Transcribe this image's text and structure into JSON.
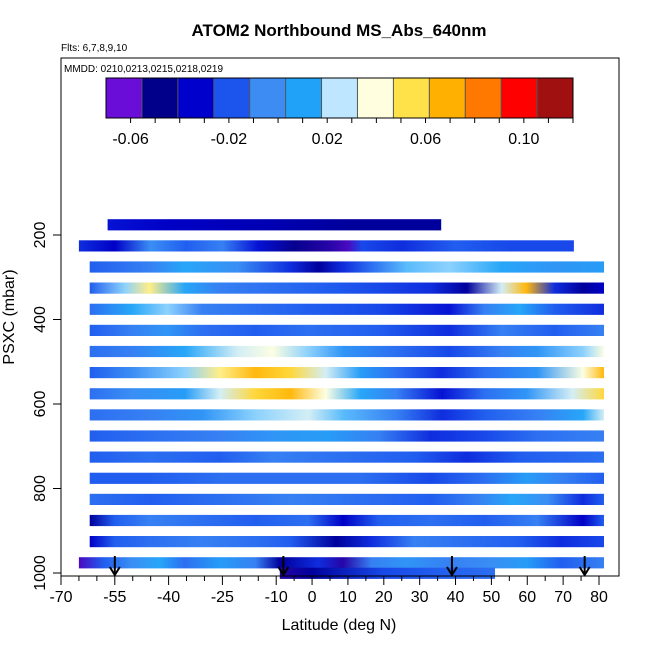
{
  "chart_data": {
    "type": "heatmap",
    "title": "ATOM2 Northbound MS_Abs_640nm",
    "flights_label": "Flts: 6,7,8,9,10",
    "dates_label": "MMDD: 0210,0213,0215,0218,0219",
    "xlabel": "Latitude (deg N)",
    "ylabel": "PSXC (mbar)",
    "x_ticks": [
      "-70",
      "-55",
      "-40",
      "-25",
      "-10",
      "0",
      "10",
      "20",
      "30",
      "40",
      "50",
      "60",
      "70",
      "80"
    ],
    "x_tick_values": [
      -70,
      -55,
      -40,
      -25,
      -10,
      0,
      10,
      20,
      30,
      40,
      50,
      60,
      70,
      80
    ],
    "x_minor_ticks": [
      -65,
      -60,
      -50,
      -45,
      -35,
      -30,
      -20,
      -15,
      -5,
      5,
      15,
      25,
      35,
      45,
      55,
      65,
      75
    ],
    "y_ticks": [
      "200",
      "400",
      "600",
      "800",
      "1000"
    ],
    "y_tick_values": [
      200,
      400,
      600,
      800,
      1000
    ],
    "xlim": [
      -70,
      84
    ],
    "ylim": [
      1000,
      100
    ],
    "colorbar": {
      "ticks": [
        "-0.06",
        "-0.02",
        "0.02",
        "0.06",
        "0.10"
      ],
      "tick_values": [
        -0.06,
        -0.02,
        0.02,
        0.06,
        0.1
      ],
      "range": [
        -0.07,
        0.12
      ],
      "step": 0.02,
      "colors": [
        "#6a0dd8",
        "#00008b",
        "#0000cd",
        "#1c55ee",
        "#3d8cf4",
        "#1fa2f8",
        "#bfe6ff",
        "#ffffe0",
        "#ffe14a",
        "#ffb000",
        "#ff7800",
        "#ff0000",
        "#a01010"
      ]
    },
    "arrow_latitudes": [
      -55,
      -8,
      39,
      76
    ],
    "pressure_levels": [
      175,
      225,
      275,
      325,
      375,
      425,
      475,
      525,
      575,
      625,
      675,
      725,
      775,
      825,
      875,
      925,
      975
    ],
    "bands": [
      {
        "p": 175,
        "lat_range": [
          -57,
          36
        ],
        "cells": [
          [
            -57,
            -0.035
          ],
          [
            -40,
            -0.04
          ],
          [
            -10,
            -0.045
          ],
          [
            10,
            -0.05
          ],
          [
            36,
            -0.05
          ]
        ]
      },
      {
        "p": 225,
        "lat_range": [
          -65,
          73
        ],
        "cells": [
          [
            -65,
            -0.03
          ],
          [
            -55,
            -0.04
          ],
          [
            -45,
            -0.005
          ],
          [
            -35,
            -0.02
          ],
          [
            -25,
            -0.01
          ],
          [
            -15,
            -0.035
          ],
          [
            -5,
            -0.055
          ],
          [
            5,
            -0.06
          ],
          [
            10,
            -0.065
          ],
          [
            14,
            -0.025
          ],
          [
            25,
            -0.03
          ],
          [
            40,
            -0.02
          ],
          [
            55,
            -0.025
          ],
          [
            73,
            -0.025
          ]
        ]
      },
      {
        "p": 275,
        "lat_range": [
          -62,
          84
        ],
        "cells": [
          [
            -62,
            -0.02
          ],
          [
            -45,
            -0.01
          ],
          [
            -35,
            0.01
          ],
          [
            -20,
            -0.005
          ],
          [
            -5,
            -0.03
          ],
          [
            3,
            -0.05
          ],
          [
            10,
            -0.03
          ],
          [
            18,
            -0.015
          ],
          [
            28,
            0.015
          ],
          [
            40,
            0.02
          ],
          [
            55,
            0.01
          ],
          [
            70,
            0.0
          ],
          [
            84,
            0.005
          ]
        ]
      },
      {
        "p": 325,
        "lat_range": [
          -62,
          84
        ],
        "cells": [
          [
            -62,
            -0.02
          ],
          [
            -52,
            0.02
          ],
          [
            -45,
            0.05
          ],
          [
            -35,
            0.01
          ],
          [
            -25,
            -0.01
          ],
          [
            -10,
            -0.015
          ],
          [
            5,
            -0.02
          ],
          [
            20,
            -0.025
          ],
          [
            35,
            -0.03
          ],
          [
            45,
            -0.05
          ],
          [
            55,
            0.03
          ],
          [
            62,
            0.07
          ],
          [
            70,
            -0.03
          ],
          [
            78,
            -0.05
          ],
          [
            84,
            -0.04
          ]
        ]
      },
      {
        "p": 375,
        "lat_range": [
          -62,
          84
        ],
        "cells": [
          [
            -62,
            -0.015
          ],
          [
            -50,
            0.01
          ],
          [
            -40,
            0.02
          ],
          [
            -30,
            -0.01
          ],
          [
            -15,
            -0.015
          ],
          [
            0,
            -0.02
          ],
          [
            20,
            -0.025
          ],
          [
            40,
            -0.035
          ],
          [
            50,
            -0.01
          ],
          [
            60,
            0.01
          ],
          [
            70,
            -0.02
          ],
          [
            84,
            -0.03
          ]
        ]
      },
      {
        "p": 425,
        "lat_range": [
          -62,
          84
        ],
        "cells": [
          [
            -62,
            -0.02
          ],
          [
            -50,
            -0.01
          ],
          [
            -40,
            0.0
          ],
          [
            -30,
            -0.015
          ],
          [
            -15,
            -0.02
          ],
          [
            0,
            -0.015
          ],
          [
            20,
            -0.02
          ],
          [
            40,
            -0.03
          ],
          [
            55,
            -0.01
          ],
          [
            70,
            -0.02
          ],
          [
            84,
            -0.01
          ]
        ]
      },
      {
        "p": 475,
        "lat_range": [
          -62,
          84
        ],
        "cells": [
          [
            -62,
            -0.015
          ],
          [
            -50,
            -0.01
          ],
          [
            -35,
            0.01
          ],
          [
            -20,
            0.03
          ],
          [
            -10,
            0.04
          ],
          [
            0,
            0.02
          ],
          [
            10,
            0.0
          ],
          [
            25,
            -0.015
          ],
          [
            40,
            -0.025
          ],
          [
            55,
            -0.01
          ],
          [
            65,
            0.0
          ],
          [
            78,
            0.02
          ],
          [
            84,
            0.04
          ]
        ]
      },
      {
        "p": 525,
        "lat_range": [
          -62,
          84
        ],
        "cells": [
          [
            -62,
            -0.02
          ],
          [
            -50,
            -0.005
          ],
          [
            -35,
            0.02
          ],
          [
            -25,
            0.05
          ],
          [
            -15,
            0.07
          ],
          [
            -5,
            0.06
          ],
          [
            5,
            0.03
          ],
          [
            15,
            0.005
          ],
          [
            25,
            -0.015
          ],
          [
            38,
            -0.03
          ],
          [
            50,
            -0.015
          ],
          [
            65,
            0.0
          ],
          [
            78,
            0.04
          ],
          [
            84,
            0.07
          ]
        ]
      },
      {
        "p": 575,
        "lat_range": [
          -62,
          84
        ],
        "cells": [
          [
            -62,
            -0.015
          ],
          [
            -50,
            -0.005
          ],
          [
            -35,
            0.005
          ],
          [
            -25,
            0.03
          ],
          [
            -15,
            0.06
          ],
          [
            -5,
            0.07
          ],
          [
            5,
            0.04
          ],
          [
            15,
            0.01
          ],
          [
            25,
            -0.01
          ],
          [
            38,
            -0.035
          ],
          [
            50,
            -0.015
          ],
          [
            62,
            0.0
          ],
          [
            75,
            0.03
          ],
          [
            84,
            0.06
          ]
        ]
      },
      {
        "p": 625,
        "lat_range": [
          -62,
          84
        ],
        "cells": [
          [
            -62,
            -0.015
          ],
          [
            -45,
            -0.01
          ],
          [
            -30,
            0.0
          ],
          [
            -15,
            0.02
          ],
          [
            0,
            0.03
          ],
          [
            10,
            0.015
          ],
          [
            25,
            -0.01
          ],
          [
            38,
            -0.03
          ],
          [
            50,
            -0.02
          ],
          [
            65,
            -0.01
          ],
          [
            78,
            0.01
          ],
          [
            84,
            0.03
          ]
        ]
      },
      {
        "p": 675,
        "lat_range": [
          -62,
          84
        ],
        "cells": [
          [
            -62,
            -0.02
          ],
          [
            -45,
            -0.015
          ],
          [
            -25,
            -0.01
          ],
          [
            -10,
            0.0
          ],
          [
            5,
            0.005
          ],
          [
            20,
            -0.01
          ],
          [
            35,
            -0.03
          ],
          [
            50,
            -0.025
          ],
          [
            65,
            -0.015
          ],
          [
            84,
            -0.01
          ]
        ]
      },
      {
        "p": 725,
        "lat_range": [
          -62,
          84
        ],
        "cells": [
          [
            -62,
            -0.02
          ],
          [
            -45,
            -0.015
          ],
          [
            -25,
            -0.02
          ],
          [
            -10,
            -0.01
          ],
          [
            10,
            -0.015
          ],
          [
            30,
            -0.02
          ],
          [
            45,
            -0.03
          ],
          [
            60,
            -0.02
          ],
          [
            84,
            -0.015
          ]
        ]
      },
      {
        "p": 775,
        "lat_range": [
          -62,
          84
        ],
        "cells": [
          [
            -62,
            -0.02
          ],
          [
            -45,
            -0.02
          ],
          [
            -25,
            -0.015
          ],
          [
            -5,
            -0.015
          ],
          [
            15,
            -0.015
          ],
          [
            35,
            -0.025
          ],
          [
            50,
            -0.015
          ],
          [
            62,
            0.005
          ],
          [
            72,
            -0.01
          ],
          [
            84,
            -0.02
          ]
        ]
      },
      {
        "p": 825,
        "lat_range": [
          -62,
          84
        ],
        "cells": [
          [
            -62,
            -0.015
          ],
          [
            -45,
            -0.02
          ],
          [
            -25,
            -0.015
          ],
          [
            -5,
            -0.01
          ],
          [
            15,
            -0.015
          ],
          [
            35,
            -0.02
          ],
          [
            48,
            -0.01
          ],
          [
            58,
            0.01
          ],
          [
            68,
            -0.005
          ],
          [
            78,
            -0.03
          ],
          [
            84,
            -0.02
          ]
        ]
      },
      {
        "p": 875,
        "lat_range": [
          -62,
          84
        ],
        "cells": [
          [
            -62,
            -0.05
          ],
          [
            -55,
            -0.02
          ],
          [
            -45,
            -0.01
          ],
          [
            -30,
            -0.015
          ],
          [
            -15,
            -0.02
          ],
          [
            0,
            -0.015
          ],
          [
            10,
            -0.04
          ],
          [
            20,
            -0.02
          ],
          [
            35,
            -0.015
          ],
          [
            50,
            -0.02
          ],
          [
            65,
            -0.01
          ],
          [
            78,
            -0.04
          ],
          [
            84,
            -0.02
          ]
        ]
      },
      {
        "p": 925,
        "lat_range": [
          -62,
          84
        ],
        "cells": [
          [
            -62,
            -0.04
          ],
          [
            -55,
            -0.02
          ],
          [
            -45,
            -0.015
          ],
          [
            -30,
            -0.01
          ],
          [
            -15,
            -0.015
          ],
          [
            -5,
            -0.02
          ],
          [
            8,
            -0.05
          ],
          [
            18,
            -0.03
          ],
          [
            30,
            -0.01
          ],
          [
            45,
            -0.015
          ],
          [
            60,
            -0.02
          ],
          [
            72,
            -0.03
          ],
          [
            84,
            -0.025
          ]
        ]
      },
      {
        "p": 975,
        "lat_range": [
          -65,
          84
        ],
        "cells": [
          [
            -65,
            -0.065
          ],
          [
            -58,
            -0.02
          ],
          [
            -50,
            -0.005
          ],
          [
            -42,
            0.01
          ],
          [
            -35,
            -0.015
          ],
          [
            -25,
            0.005
          ],
          [
            -15,
            -0.01
          ],
          [
            -8,
            -0.05
          ],
          [
            3,
            -0.03
          ],
          [
            10,
            -0.06
          ],
          [
            18,
            -0.01
          ],
          [
            28,
            0.0
          ],
          [
            40,
            -0.01
          ],
          [
            52,
            -0.005
          ],
          [
            62,
            0.005
          ],
          [
            72,
            -0.02
          ],
          [
            84,
            -0.01
          ]
        ]
      },
      {
        "p": 1000,
        "lat_range": [
          -9,
          51
        ],
        "cells": [
          [
            -9,
            -0.06
          ],
          [
            0,
            -0.05
          ],
          [
            20,
            -0.025
          ],
          [
            35,
            -0.02
          ],
          [
            51,
            -0.015
          ]
        ]
      }
    ]
  }
}
